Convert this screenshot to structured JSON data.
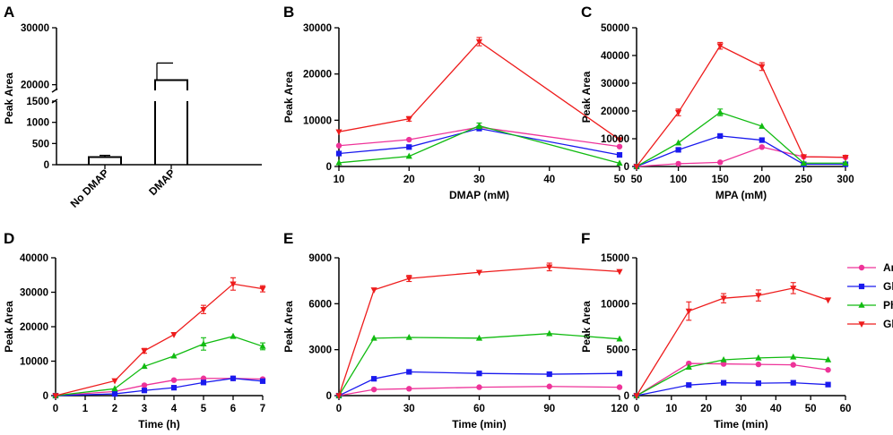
{
  "figure": {
    "colors": {
      "Arg": "#ee3399",
      "Glu": "#1a1aee",
      "Phe": "#11bb11",
      "Gln": "#ee1c1c",
      "axis": "#000000"
    },
    "legend": [
      {
        "name": "Arg",
        "marker": "circle"
      },
      {
        "name": "Glu",
        "marker": "square"
      },
      {
        "name": "Phe",
        "marker": "triangle-up"
      },
      {
        "name": "Gln",
        "marker": "triangle-down"
      }
    ]
  },
  "chart_data": [
    {
      "panel": "A",
      "type": "bar",
      "title": "",
      "xlabel": "",
      "ylabel": "Peak Area",
      "categories": [
        "No DMAP",
        "DMAP"
      ],
      "values": [
        180,
        20800
      ],
      "errors": [
        40,
        3000
      ],
      "axis_break": {
        "lower": [
          0,
          1500
        ],
        "upper": [
          19000,
          30000
        ]
      },
      "yticks": [
        0,
        500,
        1000,
        1500,
        20000,
        30000
      ],
      "ytick_labels": [
        "0",
        "500",
        "1000",
        "1500",
        "20000",
        "30000"
      ]
    },
    {
      "panel": "B",
      "type": "line",
      "xlabel": "DMAP (mM)",
      "ylabel": "Peak Area",
      "xlim": [
        10,
        50
      ],
      "ylim": [
        0,
        30000
      ],
      "xticks": [
        10,
        20,
        30,
        40,
        50
      ],
      "xtick_labels": [
        "10",
        "20",
        "30",
        "40",
        "50"
      ],
      "yticks": [
        0,
        10000,
        20000,
        30000
      ],
      "ytick_labels": [
        "0",
        "10000",
        "20000",
        "30000"
      ],
      "x": [
        10,
        20,
        30,
        50
      ],
      "series": [
        {
          "name": "Arg",
          "values": [
            4500,
            5800,
            8500,
            4300
          ],
          "errors": [
            0,
            0,
            0,
            0
          ]
        },
        {
          "name": "Glu",
          "values": [
            2800,
            4200,
            8200,
            2500
          ],
          "errors": [
            0,
            0,
            0,
            0
          ]
        },
        {
          "name": "Phe",
          "values": [
            800,
            2200,
            8800,
            700
          ],
          "errors": [
            0,
            0,
            600,
            0
          ]
        },
        {
          "name": "Gln",
          "values": [
            7500,
            10300,
            27000,
            5800
          ],
          "errors": [
            0,
            500,
            900,
            0
          ]
        }
      ]
    },
    {
      "panel": "C",
      "type": "line",
      "xlabel": "MPA (mM)",
      "ylabel": "Peak Area",
      "xlim": [
        50,
        300
      ],
      "ylim": [
        0,
        50000
      ],
      "xticks": [
        50,
        100,
        150,
        200,
        250,
        300
      ],
      "xtick_labels": [
        "50",
        "100",
        "150",
        "200",
        "250",
        "300"
      ],
      "yticks": [
        0,
        10000,
        20000,
        30000,
        40000,
        50000
      ],
      "ytick_labels": [
        "0",
        "10000",
        "20000",
        "30000",
        "40000",
        "50000"
      ],
      "x": [
        50,
        100,
        150,
        200,
        250,
        300
      ],
      "series": [
        {
          "name": "Arg",
          "values": [
            0,
            1000,
            1500,
            7000,
            3500,
            3300
          ],
          "errors": [
            0,
            0,
            0,
            0,
            0,
            0
          ]
        },
        {
          "name": "Glu",
          "values": [
            0,
            6000,
            11000,
            9500,
            800,
            800
          ],
          "errors": [
            0,
            0,
            0,
            0,
            0,
            0
          ]
        },
        {
          "name": "Phe",
          "values": [
            0,
            8500,
            19500,
            14500,
            1200,
            1200
          ],
          "errors": [
            0,
            0,
            1200,
            0,
            0,
            0
          ]
        },
        {
          "name": "Gln",
          "values": [
            0,
            19500,
            43500,
            36000,
            3500,
            3300
          ],
          "errors": [
            0,
            1200,
            1200,
            1400,
            0,
            0
          ]
        }
      ]
    },
    {
      "panel": "D",
      "type": "line",
      "xlabel": "Time (h)",
      "ylabel": "Peak Area",
      "xlim": [
        0,
        7
      ],
      "ylim": [
        0,
        40000
      ],
      "xticks": [
        0,
        1,
        2,
        3,
        4,
        5,
        6,
        7
      ],
      "xtick_labels": [
        "0",
        "1",
        "2",
        "3",
        "4",
        "5",
        "6",
        "7"
      ],
      "yticks": [
        0,
        10000,
        20000,
        30000,
        40000
      ],
      "ytick_labels": [
        "0",
        "10000",
        "20000",
        "30000",
        "40000"
      ],
      "x": [
        0,
        2,
        3,
        4,
        5,
        6,
        7
      ],
      "series": [
        {
          "name": "Arg",
          "values": [
            0,
            1200,
            3000,
            4500,
            5000,
            5000,
            4800
          ],
          "errors": [
            0,
            0,
            0,
            0,
            0,
            0,
            0
          ]
        },
        {
          "name": "Glu",
          "values": [
            0,
            500,
            1500,
            2300,
            3800,
            5000,
            4200
          ],
          "errors": [
            0,
            0,
            0,
            0,
            0,
            0,
            0
          ]
        },
        {
          "name": "Phe",
          "values": [
            0,
            2000,
            8500,
            11500,
            15000,
            17200,
            14300
          ],
          "errors": [
            0,
            0,
            0,
            0,
            1800,
            0,
            1000
          ]
        },
        {
          "name": "Gln",
          "values": [
            0,
            4300,
            13000,
            17700,
            25000,
            32400,
            31000
          ],
          "errors": [
            0,
            0,
            700,
            0,
            1200,
            1800,
            900
          ]
        }
      ]
    },
    {
      "panel": "E",
      "type": "line",
      "xlabel": "Time (min)",
      "ylabel": "Peak Area",
      "xlim": [
        0,
        120
      ],
      "ylim": [
        0,
        9000
      ],
      "xticks": [
        0,
        30,
        60,
        90,
        120
      ],
      "xtick_labels": [
        "0",
        "30",
        "60",
        "90",
        "120"
      ],
      "yticks": [
        0,
        3000,
        6000,
        9000
      ],
      "ytick_labels": [
        "0",
        "3000",
        "6000",
        "9000"
      ],
      "x": [
        0,
        15,
        30,
        60,
        90,
        120
      ],
      "series": [
        {
          "name": "Arg",
          "values": [
            0,
            400,
            450,
            550,
            600,
            550
          ],
          "errors": [
            0,
            0,
            0,
            0,
            0,
            0
          ]
        },
        {
          "name": "Glu",
          "values": [
            0,
            1100,
            1550,
            1450,
            1400,
            1450
          ],
          "errors": [
            0,
            0,
            0,
            0,
            0,
            0
          ]
        },
        {
          "name": "Phe",
          "values": [
            0,
            3750,
            3800,
            3750,
            4050,
            3700
          ],
          "errors": [
            0,
            0,
            0,
            0,
            0,
            0
          ]
        },
        {
          "name": "Gln",
          "values": [
            0,
            6900,
            7650,
            8050,
            8400,
            8100
          ],
          "errors": [
            0,
            0,
            200,
            0,
            250,
            0
          ]
        }
      ]
    },
    {
      "panel": "F",
      "type": "line",
      "xlabel": "Time (min)",
      "ylabel": "Peak Area",
      "xlim": [
        0,
        60
      ],
      "ylim": [
        0,
        15000
      ],
      "xticks": [
        0,
        10,
        20,
        30,
        40,
        50,
        60
      ],
      "xtick_labels": [
        "0",
        "10",
        "20",
        "30",
        "40",
        "50",
        "60"
      ],
      "yticks": [
        0,
        5000,
        10000,
        15000
      ],
      "ytick_labels": [
        "0",
        "5000",
        "10000",
        "15000"
      ],
      "x": [
        0,
        15,
        25,
        35,
        45,
        55
      ],
      "series": [
        {
          "name": "Arg",
          "values": [
            0,
            3500,
            3450,
            3400,
            3350,
            2800
          ],
          "errors": [
            0,
            0,
            0,
            0,
            0,
            0
          ]
        },
        {
          "name": "Glu",
          "values": [
            0,
            1150,
            1400,
            1350,
            1400,
            1200
          ],
          "errors": [
            0,
            0,
            0,
            0,
            0,
            0
          ]
        },
        {
          "name": "Phe",
          "values": [
            0,
            3100,
            3900,
            4100,
            4200,
            3900
          ],
          "errors": [
            0,
            0,
            0,
            0,
            0,
            0
          ]
        },
        {
          "name": "Gln",
          "values": [
            0,
            9200,
            10600,
            10900,
            11700,
            10400
          ],
          "errors": [
            0,
            1000,
            500,
            600,
            600,
            0
          ]
        }
      ]
    }
  ]
}
